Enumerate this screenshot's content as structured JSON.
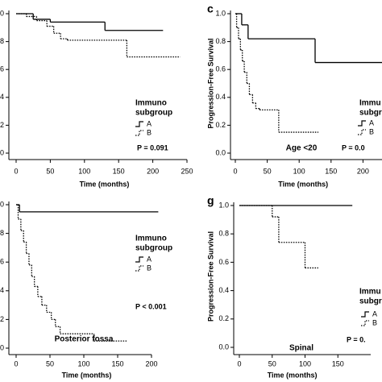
{
  "chart_data": [
    {
      "type": "step",
      "xlabel": "Time (months)",
      "xlim": [
        0,
        250
      ],
      "xticks": [
        0,
        50,
        100,
        150,
        200,
        250
      ],
      "ylim": [
        0,
        1
      ],
      "yticks": [
        {
          "value": 0,
          "label": "0.0"
        },
        {
          "value": 0.2,
          "label": "0.2"
        },
        {
          "value": 0.4,
          "label": "0.4"
        },
        {
          "value": 0.6,
          "label": "0.6"
        },
        {
          "value": 0.8,
          "label": "0.8"
        },
        {
          "value": 1,
          "label": "1.0"
        }
      ],
      "legend_title": [
        "Immuno",
        "subgroup"
      ],
      "annotation": "P = 0.091",
      "series": [
        {
          "name": "A",
          "color": "#000000",
          "x": [
            0,
            25,
            50,
            130,
            215
          ],
          "values": [
            1,
            0.96,
            0.94,
            0.88,
            0.88
          ]
        },
        {
          "name": "B",
          "color": "#000000",
          "x": [
            0,
            15,
            30,
            45,
            55,
            65,
            75,
            162,
            240
          ],
          "values": [
            1,
            0.98,
            0.95,
            0.91,
            0.86,
            0.82,
            0.81,
            0.69,
            0.69
          ]
        }
      ]
    },
    {
      "type": "step",
      "panel": "c",
      "xlabel": "Time (months)",
      "ylabel": "Progression-Free Survival",
      "xlim": [
        0,
        250
      ],
      "xticks": [
        0,
        50,
        100,
        150,
        200
      ],
      "ylim": [
        0,
        1
      ],
      "yticks": [
        {
          "value": 0,
          "label": "0.0"
        },
        {
          "value": 0.2,
          "label": "0.2"
        },
        {
          "value": 0.4,
          "label": "0.4"
        },
        {
          "value": 0.6,
          "label": "0.6"
        },
        {
          "value": 0.8,
          "label": "0.8"
        },
        {
          "value": 1,
          "label": "1.0"
        }
      ],
      "legend_title": [
        "Immu",
        "subgro"
      ],
      "annotation": "P = 0.0",
      "subset": "Age <20",
      "series": [
        {
          "name": "A",
          "color": "#000000",
          "x": [
            0,
            10,
            20,
            125,
            250
          ],
          "values": [
            1,
            0.92,
            0.82,
            0.65,
            0.65
          ]
        },
        {
          "name": "B",
          "color": "#000000",
          "x": [
            0,
            2,
            5,
            8,
            11,
            14,
            18,
            22,
            27,
            32,
            38,
            68,
            130
          ],
          "values": [
            1,
            0.9,
            0.82,
            0.74,
            0.66,
            0.58,
            0.5,
            0.42,
            0.36,
            0.32,
            0.31,
            0.15,
            0.15
          ]
        }
      ]
    },
    {
      "type": "step",
      "xlabel": "Time (months)",
      "xlim": [
        0,
        200
      ],
      "xticks": [
        0,
        50,
        100,
        150,
        200
      ],
      "ylim": [
        0,
        1
      ],
      "yticks": [
        {
          "value": 0,
          "label": "0.0"
        },
        {
          "value": 0.2,
          "label": "0.2"
        },
        {
          "value": 0.4,
          "label": "0.4"
        },
        {
          "value": 0.6,
          "label": "0.6"
        },
        {
          "value": 0.8,
          "label": "0.8"
        },
        {
          "value": 1,
          "label": "1.0"
        }
      ],
      "legend_title": [
        "Immuno",
        "subgroup"
      ],
      "annotation": "P < 0.001",
      "subset": "Posterior fossa",
      "series": [
        {
          "name": "A",
          "color": "#000000",
          "x": [
            0,
            5,
            210
          ],
          "values": [
            1,
            0.95,
            0.95
          ]
        },
        {
          "name": "B",
          "color": "#000000",
          "x": [
            0,
            3,
            7,
            11,
            15,
            19,
            23,
            27,
            32,
            38,
            45,
            52,
            58,
            65,
            115,
            165
          ],
          "values": [
            1,
            0.9,
            0.82,
            0.74,
            0.66,
            0.58,
            0.5,
            0.43,
            0.36,
            0.3,
            0.25,
            0.2,
            0.15,
            0.1,
            0.05,
            0.05
          ]
        }
      ]
    },
    {
      "type": "step",
      "panel": "g",
      "xlabel": "Time (months)",
      "ylabel": "Progression-Free Survival",
      "xlim": [
        0,
        200
      ],
      "xticks": [
        0,
        50,
        100,
        150
      ],
      "ylim": [
        0,
        1
      ],
      "yticks": [
        {
          "value": 0,
          "label": "0.0"
        },
        {
          "value": 0.2,
          "label": "0.2"
        },
        {
          "value": 0.4,
          "label": "0.4"
        },
        {
          "value": 0.6,
          "label": "0.6"
        },
        {
          "value": 0.8,
          "label": "0.8"
        },
        {
          "value": 1,
          "label": "1.0"
        }
      ],
      "legend_title": [
        "Immu",
        "subgrou"
      ],
      "annotation": "P = 0.",
      "subset": "Spinal",
      "series": [
        {
          "name": "A",
          "color": "#000000",
          "x": [
            0,
            172
          ],
          "values": [
            1,
            1
          ]
        },
        {
          "name": "B",
          "color": "#000000",
          "x": [
            0,
            50,
            60,
            100,
            120
          ],
          "values": [
            1,
            0.92,
            0.74,
            0.56,
            0.56
          ]
        }
      ]
    }
  ]
}
